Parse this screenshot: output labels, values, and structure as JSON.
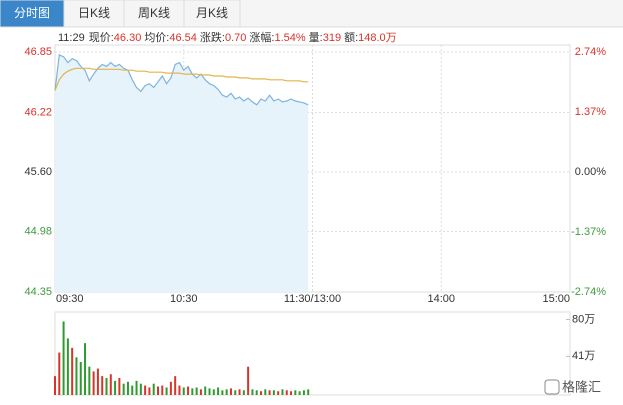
{
  "tabs": [
    "分时图",
    "日K线",
    "周K线",
    "月K线"
  ],
  "info": {
    "time": "11:29",
    "fields": [
      {
        "label": "现价:",
        "value": "46.30"
      },
      {
        "label": "均价:",
        "value": "46.54"
      },
      {
        "label": "涨跌:",
        "value": "0.70"
      },
      {
        "label": "涨幅:",
        "value": "1.54%"
      },
      {
        "label": "量:",
        "value": "319"
      },
      {
        "label": "额:",
        "value": "148.0万"
      }
    ]
  },
  "watermark": "格隆汇",
  "chart_data": [
    {
      "type": "line",
      "x": [
        0,
        2,
        4,
        6,
        8,
        10,
        12,
        14,
        16,
        18,
        20,
        22,
        24,
        26,
        28,
        30,
        32,
        34,
        36,
        38,
        40,
        42,
        44,
        46,
        48,
        50,
        52,
        54,
        56,
        58,
        60,
        62,
        64,
        66,
        68,
        70,
        72,
        74,
        76,
        78,
        80,
        82,
        84,
        86,
        88,
        90,
        92,
        94,
        96,
        98,
        100,
        102,
        104,
        106,
        108,
        110,
        112,
        114,
        116,
        118
      ],
      "series": [
        {
          "color": "#7fb3de",
          "values": [
            46.45,
            46.82,
            46.8,
            46.74,
            46.78,
            46.76,
            46.7,
            46.66,
            46.55,
            46.62,
            46.68,
            46.72,
            46.7,
            46.74,
            46.7,
            46.72,
            46.68,
            46.66,
            46.56,
            46.48,
            46.44,
            46.5,
            46.52,
            46.48,
            46.54,
            46.6,
            46.52,
            46.58,
            46.72,
            46.74,
            46.66,
            46.7,
            46.62,
            46.58,
            46.62,
            46.56,
            46.52,
            46.5,
            46.46,
            46.4,
            46.38,
            46.42,
            46.36,
            46.38,
            46.34,
            46.37,
            46.33,
            46.3,
            46.36,
            46.34,
            46.4,
            46.34,
            46.36,
            46.33,
            46.34,
            46.36,
            46.34,
            46.33,
            46.32,
            46.3
          ]
        },
        {
          "color": "#e3b54a",
          "values": [
            46.45,
            46.56,
            46.62,
            46.65,
            46.67,
            46.68,
            46.68,
            46.68,
            46.68,
            46.67,
            46.67,
            46.67,
            46.67,
            46.67,
            46.67,
            46.67,
            46.66,
            46.66,
            46.66,
            46.65,
            46.65,
            46.65,
            46.64,
            46.64,
            46.64,
            46.64,
            46.63,
            46.63,
            46.63,
            46.63,
            46.62,
            46.62,
            46.62,
            46.62,
            46.61,
            46.61,
            46.61,
            46.6,
            46.6,
            46.6,
            46.59,
            46.59,
            46.59,
            46.58,
            46.58,
            46.58,
            46.57,
            46.57,
            46.57,
            46.57,
            46.56,
            46.56,
            46.56,
            46.56,
            46.55,
            46.55,
            46.55,
            46.55,
            46.54,
            46.54
          ]
        }
      ],
      "xlim": [
        0,
        240
      ],
      "xticks": [
        {
          "value": 0,
          "label": "09:30"
        },
        {
          "value": 60,
          "label": "10:30"
        },
        {
          "value": 120,
          "label": "11:30/13:00"
        },
        {
          "value": 180,
          "label": "14:00"
        },
        {
          "value": 240,
          "label": "15:00"
        }
      ],
      "ylim": [
        44.35,
        46.85
      ],
      "yticks": [
        46.85,
        46.22,
        {
          "value": 45.6,
          "label": "45.60"
        },
        44.98,
        44.35
      ],
      "y2lim": [
        -2.74,
        2.74
      ],
      "y2ticks": [
        {
          "value": 2.74,
          "label": "2.74%"
        },
        {
          "value": 1.37,
          "label": "1.37%"
        },
        {
          "value": 0,
          "label": "0.00%"
        },
        {
          "value": -1.37,
          "label": "-1.37%"
        },
        {
          "value": -2.74,
          "label": "-2.74%"
        }
      ],
      "grid": true
    },
    {
      "type": "bar",
      "values": [
        20,
        45,
        78,
        60,
        50,
        40,
        35,
        55,
        30,
        25,
        28,
        20,
        18,
        22,
        15,
        18,
        12,
        14,
        10,
        15,
        12,
        10,
        8,
        12,
        9,
        10,
        8,
        14,
        20,
        10,
        8,
        9,
        7,
        8,
        6,
        9,
        7,
        6,
        8,
        5,
        6,
        7,
        5,
        6,
        5,
        30,
        6,
        5,
        4,
        6,
        5,
        5,
        4,
        6,
        5,
        4,
        5,
        4,
        5,
        6
      ],
      "ylim": [
        0,
        88
      ],
      "yticks": [
        {
          "value": 80,
          "label": "80万"
        },
        {
          "value": 41,
          "label": "41万"
        }
      ],
      "colors": {
        "up": "#d9332a",
        "down": "#2f9a2f"
      }
    }
  ]
}
